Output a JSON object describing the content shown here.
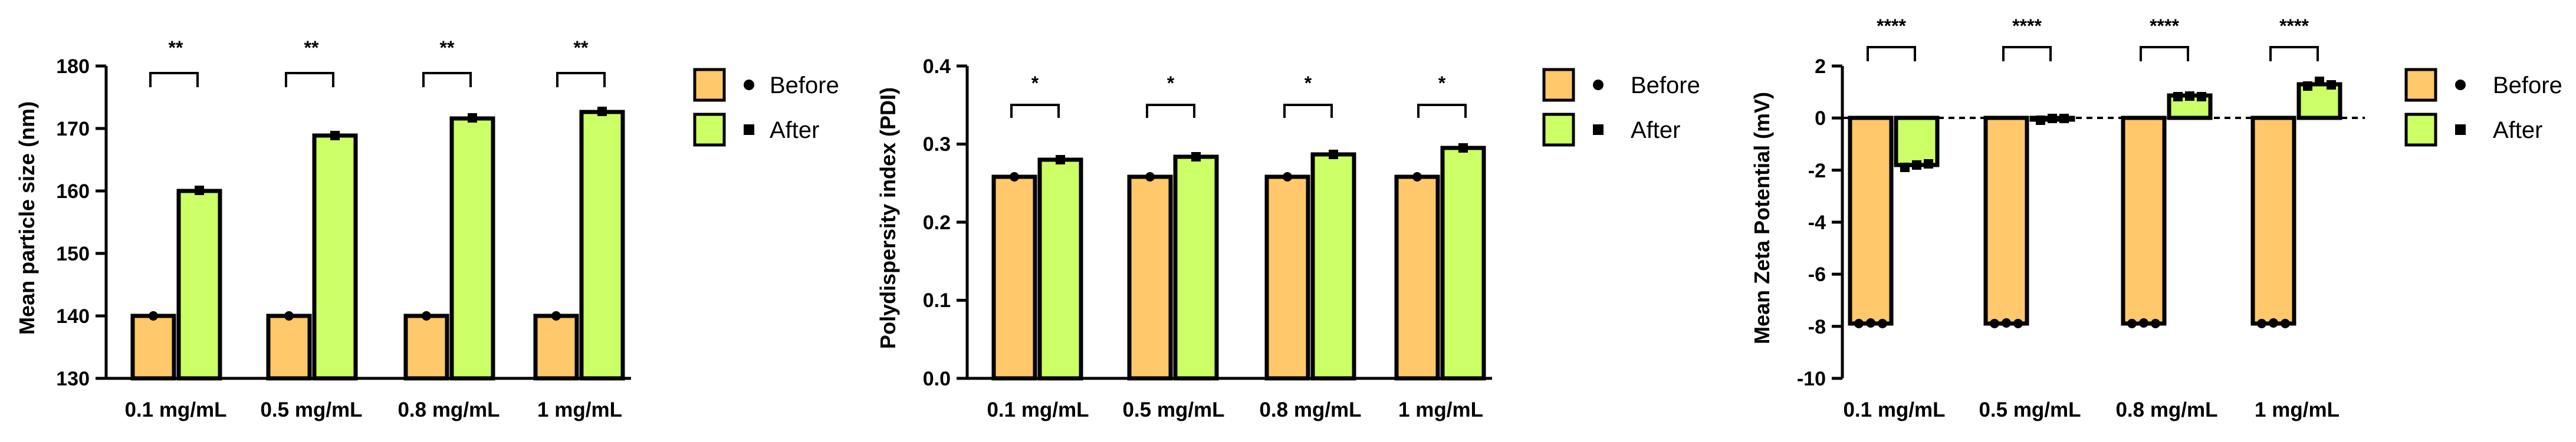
{
  "colors": {
    "before": "#FFC86A",
    "after": "#CCFF66",
    "stroke": "#000000"
  },
  "legend": {
    "before_label": "Before",
    "after_label": "After",
    "before_marker": "circle-icon",
    "after_marker": "square-icon"
  },
  "chart_data": [
    {
      "type": "bar",
      "ylabel": "Mean particle size (nm)",
      "categories": [
        "0.1 mg/mL",
        "0.5 mg/mL",
        "0.8 mg/mL",
        "1 mg/mL"
      ],
      "ylim": [
        130,
        180
      ],
      "yticks": [
        "130",
        "140",
        "150",
        "160",
        "170",
        "180"
      ],
      "series": [
        {
          "name": "Before",
          "values": [
            140,
            140,
            140,
            140
          ]
        },
        {
          "name": "After",
          "values": [
            160.3,
            169,
            171.6,
            173.6
          ]
        }
      ],
      "significance": [
        "**",
        "**",
        "**",
        "**"
      ],
      "legend": "right"
    },
    {
      "type": "bar",
      "ylabel": "Polydispersity index (PDI)",
      "categories": [
        "0.1 mg/mL",
        "0.5 mg/mL",
        "0.8 mg/mL",
        "1 mg/mL"
      ],
      "ylim": [
        0,
        0.4
      ],
      "yticks": [
        "0.0",
        "0.1",
        "0.2",
        "0.3",
        "0.4"
      ],
      "series": [
        {
          "name": "Before",
          "values": [
            0.258,
            0.258,
            0.258,
            0.258
          ]
        },
        {
          "name": "After",
          "values": [
            0.28,
            0.284,
            0.287,
            0.295
          ]
        }
      ],
      "significance": [
        "*",
        "*",
        "*",
        "*"
      ],
      "legend": "right"
    },
    {
      "type": "bar",
      "ylabel": "Mean Zeta Potential (mV)",
      "categories": [
        "0.1 mg/mL",
        "0.5 mg/mL",
        "0.8 mg/mL",
        "1 mg/mL"
      ],
      "ylim": [
        -10,
        2
      ],
      "yticks": [
        "-10",
        "-8",
        "-6",
        "-4",
        "-2",
        "0",
        "2"
      ],
      "series": [
        {
          "name": "Before",
          "values": [
            -7.9,
            -7.9,
            -7.9,
            -7.9
          ]
        },
        {
          "name": "After",
          "values": [
            -1.8,
            -0.05,
            0.85,
            1.3
          ]
        }
      ],
      "significance": [
        "****",
        "****",
        "****",
        "****"
      ],
      "zero_line": "dashed",
      "legend": "right"
    }
  ]
}
